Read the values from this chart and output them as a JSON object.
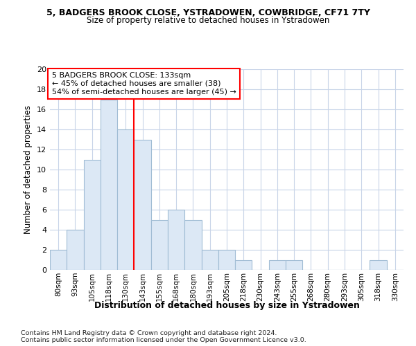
{
  "title1": "5, BADGERS BROOK CLOSE, YSTRADOWEN, COWBRIDGE, CF71 7TY",
  "title2": "Size of property relative to detached houses in Ystradowen",
  "xlabel": "Distribution of detached houses by size in Ystradowen",
  "ylabel": "Number of detached properties",
  "categories": [
    "80sqm",
    "93sqm",
    "105sqm",
    "118sqm",
    "130sqm",
    "143sqm",
    "155sqm",
    "168sqm",
    "180sqm",
    "193sqm",
    "205sqm",
    "218sqm",
    "230sqm",
    "243sqm",
    "255sqm",
    "268sqm",
    "280sqm",
    "293sqm",
    "305sqm",
    "318sqm",
    "330sqm"
  ],
  "values": [
    2,
    4,
    11,
    17,
    14,
    13,
    5,
    6,
    5,
    2,
    2,
    1,
    0,
    1,
    1,
    0,
    0,
    0,
    0,
    1,
    0
  ],
  "bar_color": "#dce8f5",
  "bar_edge_color": "#a0bcd4",
  "redline_x": 4.5,
  "annotation_text": "5 BADGERS BROOK CLOSE: 133sqm\n← 45% of detached houses are smaller (38)\n54% of semi-detached houses are larger (45) →",
  "ylim": [
    0,
    20
  ],
  "yticks": [
    0,
    2,
    4,
    6,
    8,
    10,
    12,
    14,
    16,
    18,
    20
  ],
  "grid_color": "#c8d4e8",
  "background_color": "#ffffff",
  "plot_bg_color": "#ffffff",
  "footer1": "Contains HM Land Registry data © Crown copyright and database right 2024.",
  "footer2": "Contains public sector information licensed under the Open Government Licence v3.0."
}
